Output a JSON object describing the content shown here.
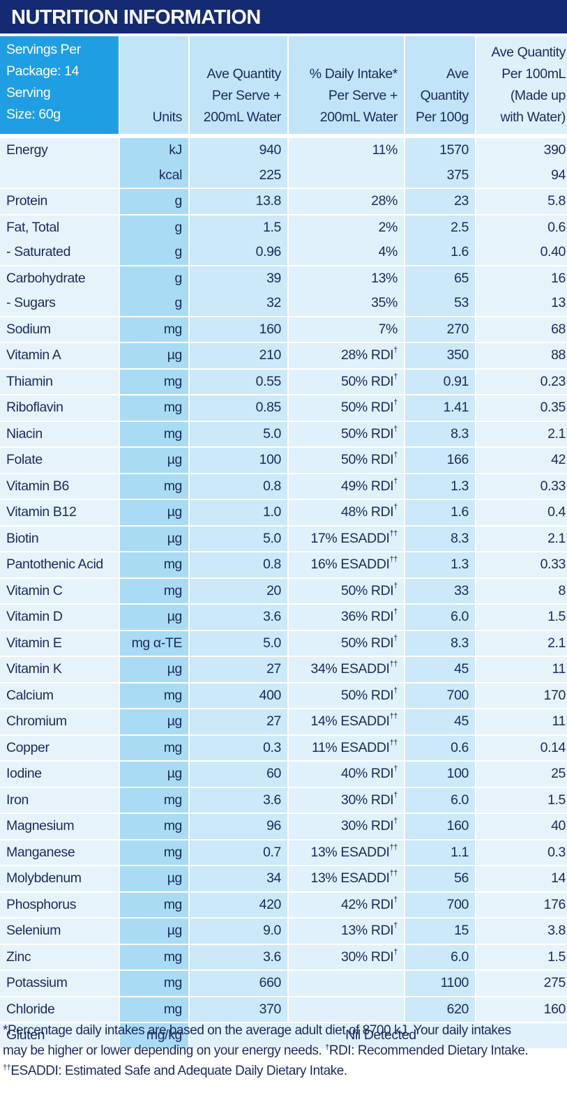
{
  "title": "NUTRITION INFORMATION",
  "table": {
    "header": [
      [
        "Servings Per",
        "Package: 14",
        "Serving",
        "Size: 60g"
      ],
      [
        "Units"
      ],
      [
        "Ave Quantity",
        "Per Serve +",
        "200mL Water"
      ],
      [
        "% Daily Intake*",
        "Per Serve +",
        "200mL Water"
      ],
      [
        "Ave",
        "Quantity",
        "Per 100g"
      ],
      [
        "Ave Quantity",
        "Per 100mL",
        "(Made up",
        "with Water)"
      ]
    ],
    "rows": [
      [
        [
          "Energy",
          "kJ",
          "940",
          "11%",
          "1570",
          "390"
        ],
        [
          null,
          "kcal",
          "225",
          null,
          "375",
          "94"
        ]
      ],
      [
        [
          "Protein",
          "g",
          "13.8",
          "28%",
          "23",
          "5.8"
        ]
      ],
      [
        [
          "Fat, Total",
          "g",
          "1.5",
          "2%",
          "2.5",
          "0.6"
        ],
        [
          "- Saturated",
          "g",
          "0.96",
          "4%",
          "1.6",
          "0.40"
        ]
      ],
      [
        [
          "Carbohydrate",
          "g",
          "39",
          "13%",
          "65",
          "16"
        ],
        [
          "- Sugars",
          "g",
          "32",
          "35%",
          "53",
          "13"
        ]
      ],
      [
        [
          "Sodium",
          "mg",
          "160",
          "7%",
          "270",
          "68"
        ]
      ],
      [
        [
          "Vitamin A",
          "µg",
          "210",
          "28% RDI†",
          "350",
          "88"
        ]
      ],
      [
        [
          "Thiamin",
          "mg",
          "0.55",
          "50% RDI†",
          "0.91",
          "0.23"
        ]
      ],
      [
        [
          "Riboflavin",
          "mg",
          "0.85",
          "50% RDI†",
          "1.41",
          "0.35"
        ]
      ],
      [
        [
          "Niacin",
          "mg",
          "5.0",
          "50% RDI†",
          "8.3",
          "2.1"
        ]
      ],
      [
        [
          "Folate",
          "µg",
          "100",
          "50% RDI†",
          "166",
          "42"
        ]
      ],
      [
        [
          "Vitamin B6",
          "mg",
          "0.8",
          "49% RDI†",
          "1.3",
          "0.33"
        ]
      ],
      [
        [
          "Vitamin B12",
          "µg",
          "1.0",
          "48% RDI†",
          "1.6",
          "0.4"
        ]
      ],
      [
        [
          "Biotin",
          "µg",
          "5.0",
          "17% ESADDI††",
          "8.3",
          "2.1"
        ]
      ],
      [
        [
          "Pantothenic Acid",
          "mg",
          "0.8",
          "16% ESADDI††",
          "1.3",
          "0.33"
        ]
      ],
      [
        [
          "Vitamin C",
          "mg",
          "20",
          "50% RDI†",
          "33",
          "8"
        ]
      ],
      [
        [
          "Vitamin D",
          "µg",
          "3.6",
          "36% RDI†",
          "6.0",
          "1.5"
        ]
      ],
      [
        [
          "Vitamin E",
          "mg α-TE",
          "5.0",
          "50% RDI†",
          "8.3",
          "2.1"
        ]
      ],
      [
        [
          "Vitamin K",
          "µg",
          "27",
          "34% ESADDI††",
          "45",
          "11"
        ]
      ],
      [
        [
          "Calcium",
          "mg",
          "400",
          "50% RDI†",
          "700",
          "170"
        ]
      ],
      [
        [
          "Chromium",
          "µg",
          "27",
          "14% ESADDI††",
          "45",
          "11"
        ]
      ],
      [
        [
          "Copper",
          "mg",
          "0.3",
          "11% ESADDI††",
          "0.6",
          "0.14"
        ]
      ],
      [
        [
          "Iodine",
          "µg",
          "60",
          "40% RDI†",
          "100",
          "25"
        ]
      ],
      [
        [
          "Iron",
          "mg",
          "3.6",
          "30% RDI†",
          "6.0",
          "1.5"
        ]
      ],
      [
        [
          "Magnesium",
          "mg",
          "96",
          "30% RDI†",
          "160",
          "40"
        ]
      ],
      [
        [
          "Manganese",
          "mg",
          "0.7",
          "13% ESADDI††",
          "1.1",
          "0.3"
        ]
      ],
      [
        [
          "Molybdenum",
          "µg",
          "34",
          "13% ESADDI††",
          "56",
          "14"
        ]
      ],
      [
        [
          "Phosphorus",
          "mg",
          "420",
          "42% RDI†",
          "700",
          "176"
        ]
      ],
      [
        [
          "Selenium",
          "µg",
          "9.0",
          "13% RDI†",
          "15",
          "3.8"
        ]
      ],
      [
        [
          "Zinc",
          "mg",
          "3.6",
          "30% RDI†",
          "6.0",
          "1.5"
        ]
      ],
      [
        [
          "Potassium",
          "mg",
          "660",
          null,
          "1100",
          "275"
        ]
      ],
      [
        [
          "Chloride",
          "mg",
          "370",
          null,
          "620",
          "160"
        ]
      ],
      [
        [
          "Gluten",
          "mg/kg",
          "Nil Detected"
        ]
      ]
    ]
  },
  "footnote": [
    "*Percentage daily intakes are based on the average adult diet of 8700 kJ. Your daily intakes",
    "may be higher or lower depending on your energy needs. †RDI: Recommended Dietary Intake.",
    "††ESADDI: Estimated Safe and Adequate Daily Dietary Intake."
  ]
}
